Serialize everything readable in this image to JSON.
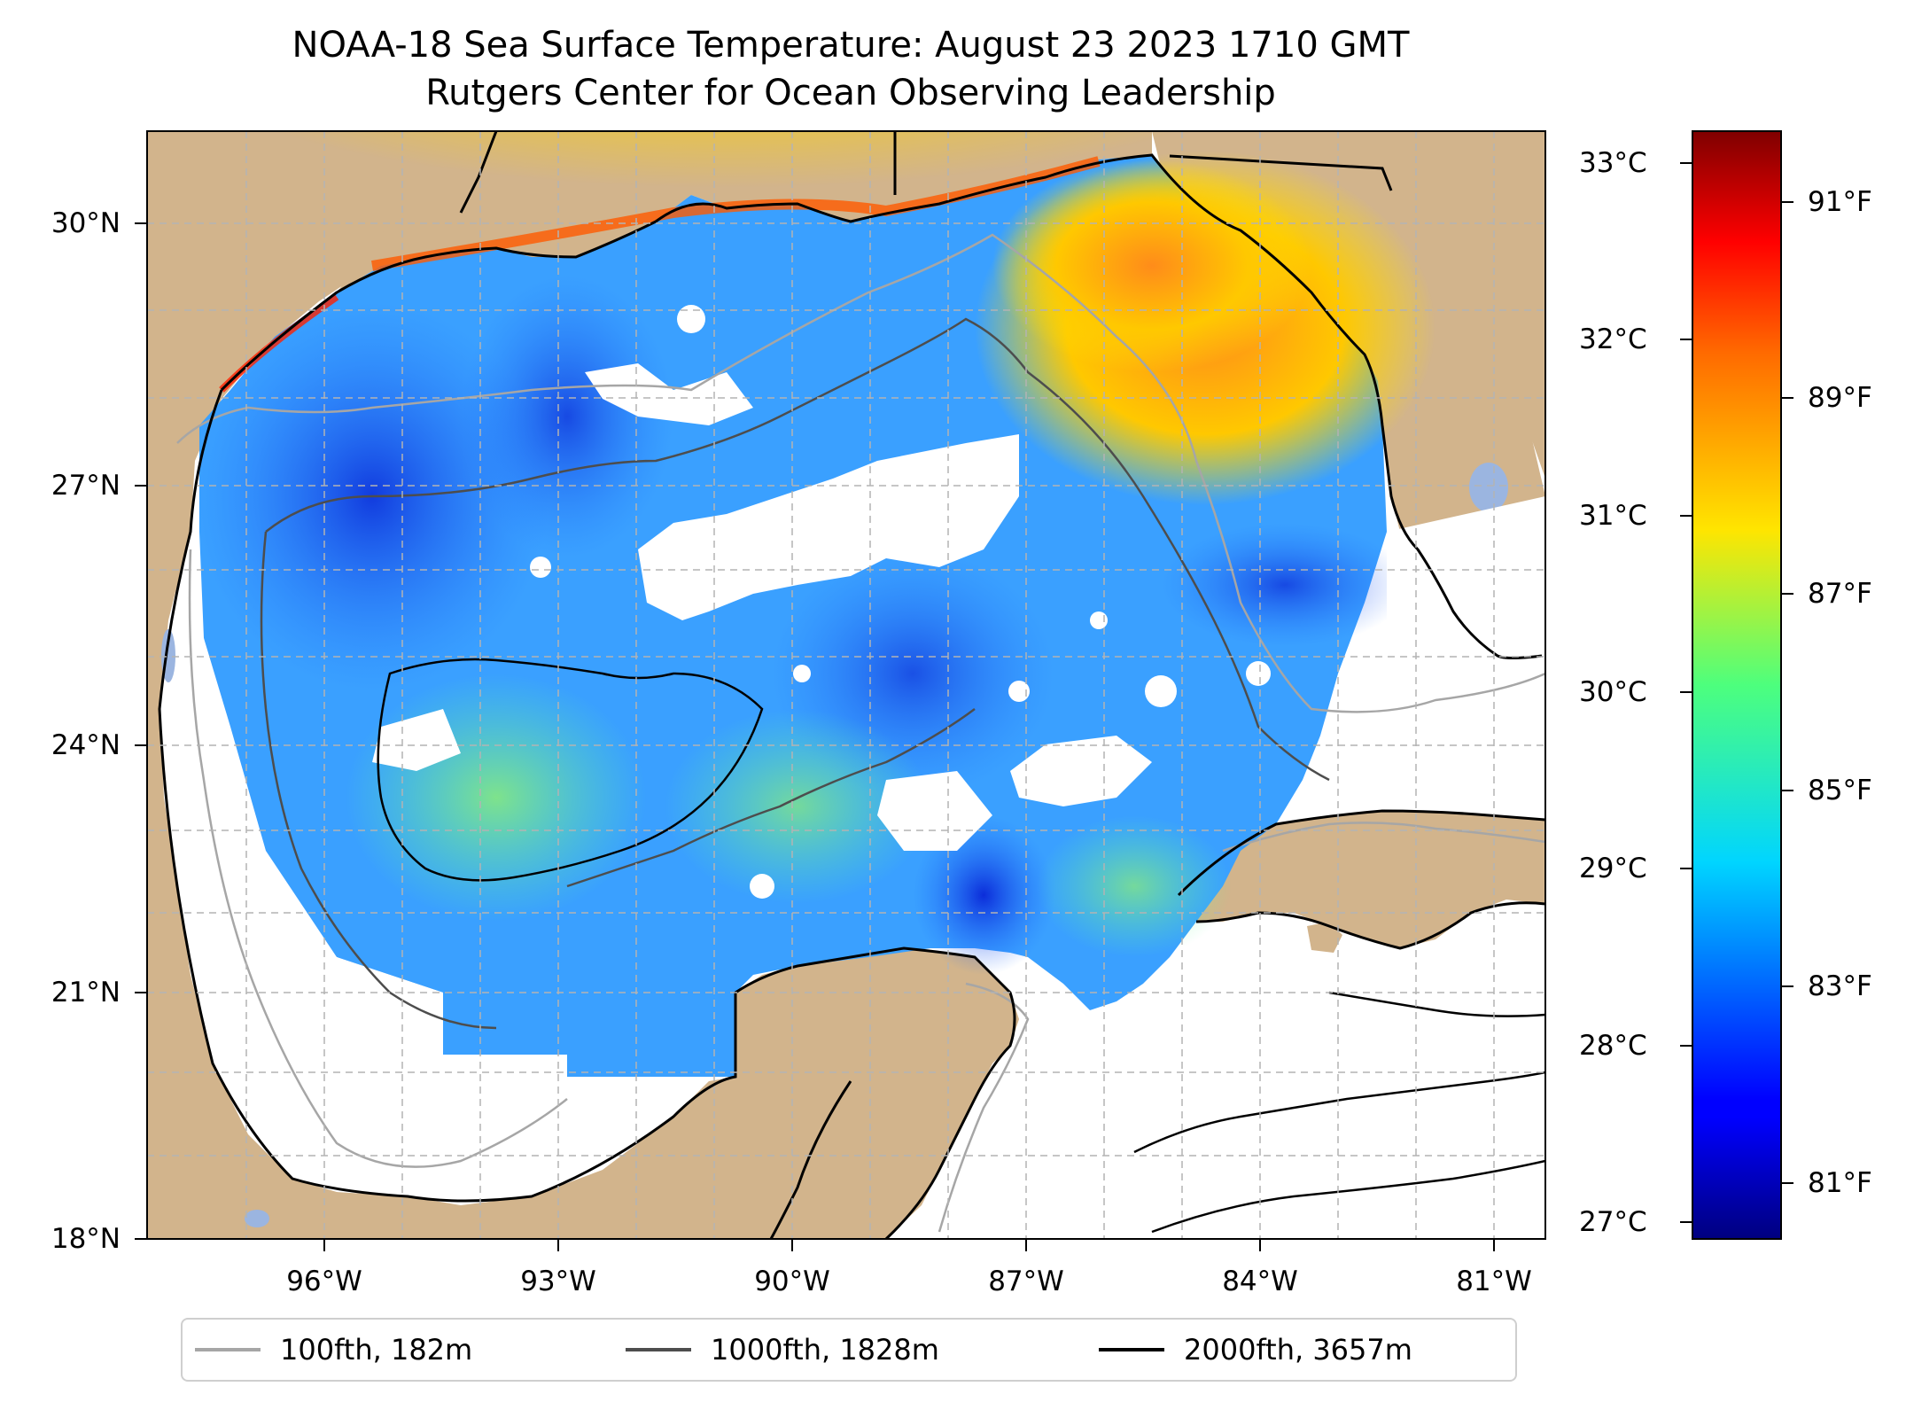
{
  "title_line1": "NOAA-18 Sea Surface Temperature: August 23 2023 1710 GMT",
  "title_line2": "Rutgers Center for Ocean Observing Leadership",
  "latitude_ticks": [
    "30°N",
    "27°N",
    "24°N",
    "21°N",
    "18°N"
  ],
  "longitude_ticks": [
    "96°W",
    "93°W",
    "90°W",
    "87°W",
    "84°W",
    "81°W"
  ],
  "colorbar": {
    "celsius_ticks": [
      "33°C",
      "32°C",
      "31°C",
      "30°C",
      "29°C",
      "28°C",
      "27°C"
    ],
    "fahrenheit_ticks": [
      "91°F",
      "89°F",
      "87°F",
      "85°F",
      "83°F",
      "81°F"
    ],
    "colormap": "jet",
    "range_celsius": [
      26.9,
      33.2
    ]
  },
  "legend": [
    {
      "label": "100fth, 182m",
      "color": "#a6a6a6"
    },
    {
      "label": "1000fth, 1828m",
      "color": "#4d4d4d"
    },
    {
      "label": "2000fth, 3657m",
      "color": "#000000"
    }
  ],
  "colors": {
    "land": "#d2b48c",
    "water_body": "#9bb5e0",
    "no_data": "#ffffff"
  }
}
